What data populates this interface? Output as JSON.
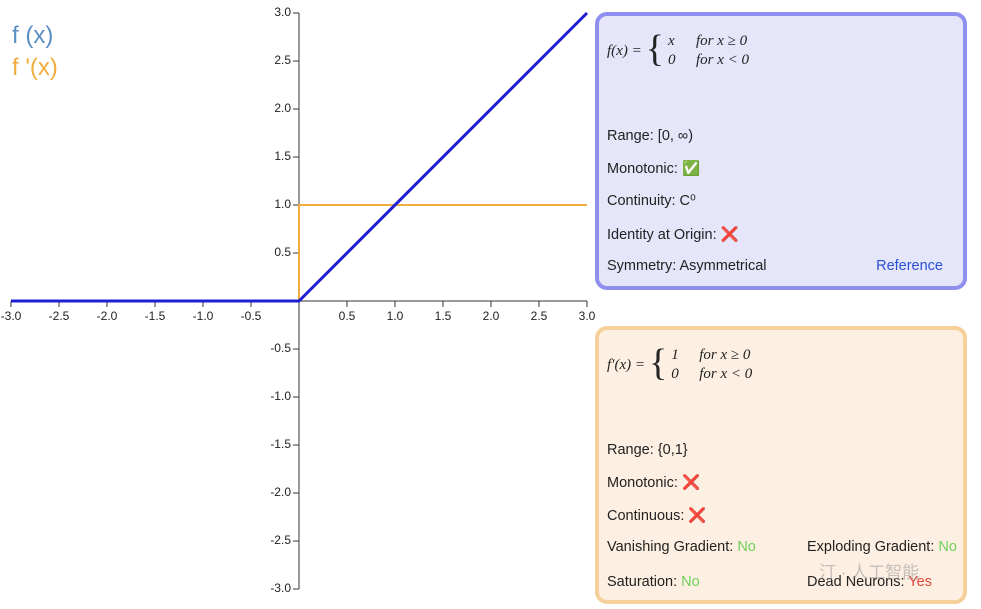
{
  "chart_data": {
    "type": "line",
    "xlim": [
      -3,
      3
    ],
    "ylim": [
      -3,
      3
    ],
    "xticks": [
      {
        "value": -3,
        "label": "-3.0"
      },
      -2.5,
      {
        "value": -2,
        "label": "-2.0"
      },
      -1.5,
      {
        "value": -1,
        "label": "-1.0"
      },
      -0.5,
      0.5,
      {
        "value": 1,
        "label": "1.0"
      },
      1.5,
      {
        "value": 2,
        "label": "2.0"
      },
      2.5,
      {
        "value": 3,
        "label": "3.0"
      }
    ],
    "yticks": [
      {
        "value": -3,
        "label": "-3.0"
      },
      -2.5,
      {
        "value": -2,
        "label": "-2.0"
      },
      -1.5,
      {
        "value": -1,
        "label": "-1.0"
      },
      -0.5,
      0.5,
      {
        "value": 1,
        "label": "1.0"
      },
      1.5,
      {
        "value": 2,
        "label": "2.0"
      },
      2.5,
      {
        "value": 3,
        "label": "3.0"
      }
    ],
    "series": [
      {
        "name": "f (x)",
        "color": "#1f1fd6",
        "legend_color": "#5b8ec2",
        "x": [
          -3,
          0,
          3
        ],
        "values": [
          0,
          0,
          3
        ]
      },
      {
        "name": "f '(x)",
        "color": "#f0ad3e",
        "legend_color": "#f0ad3e",
        "x": [
          -3,
          0,
          0,
          3
        ],
        "values": [
          0,
          0,
          1,
          1
        ]
      }
    ]
  },
  "function_panel": {
    "formula": {
      "lhs": "f(x) =",
      "cases": [
        [
          "x",
          "for x ≥ 0"
        ],
        [
          "0",
          "for x < 0"
        ]
      ]
    },
    "items": [
      "Range: [0, ∞)",
      "Monotonic: ✅",
      "Continuity: C⁰",
      "Identity at Origin: ❌"
    ],
    "symmetry": "Symmetry: Asymmetrical",
    "link": "Reference"
  },
  "derivative_panel": {
    "formula": {
      "lhs": "f′(x) =",
      "cases": [
        [
          "1",
          "for x ≥ 0"
        ],
        [
          "0",
          "for x < 0"
        ]
      ]
    },
    "items": [
      "Range: {0,1}",
      "Monotonic: ❌",
      "Continuous: ❌"
    ],
    "flags": [
      {
        "label": "Vanishing Gradient:",
        "value": "No"
      },
      {
        "label": "Exploding Gradient:",
        "value": "No"
      },
      {
        "label": "Saturation:",
        "value": "No"
      },
      {
        "label": "Dead Neurons:",
        "value": "Yes"
      }
    ]
  },
  "watermark": "汀 · 人工智能"
}
